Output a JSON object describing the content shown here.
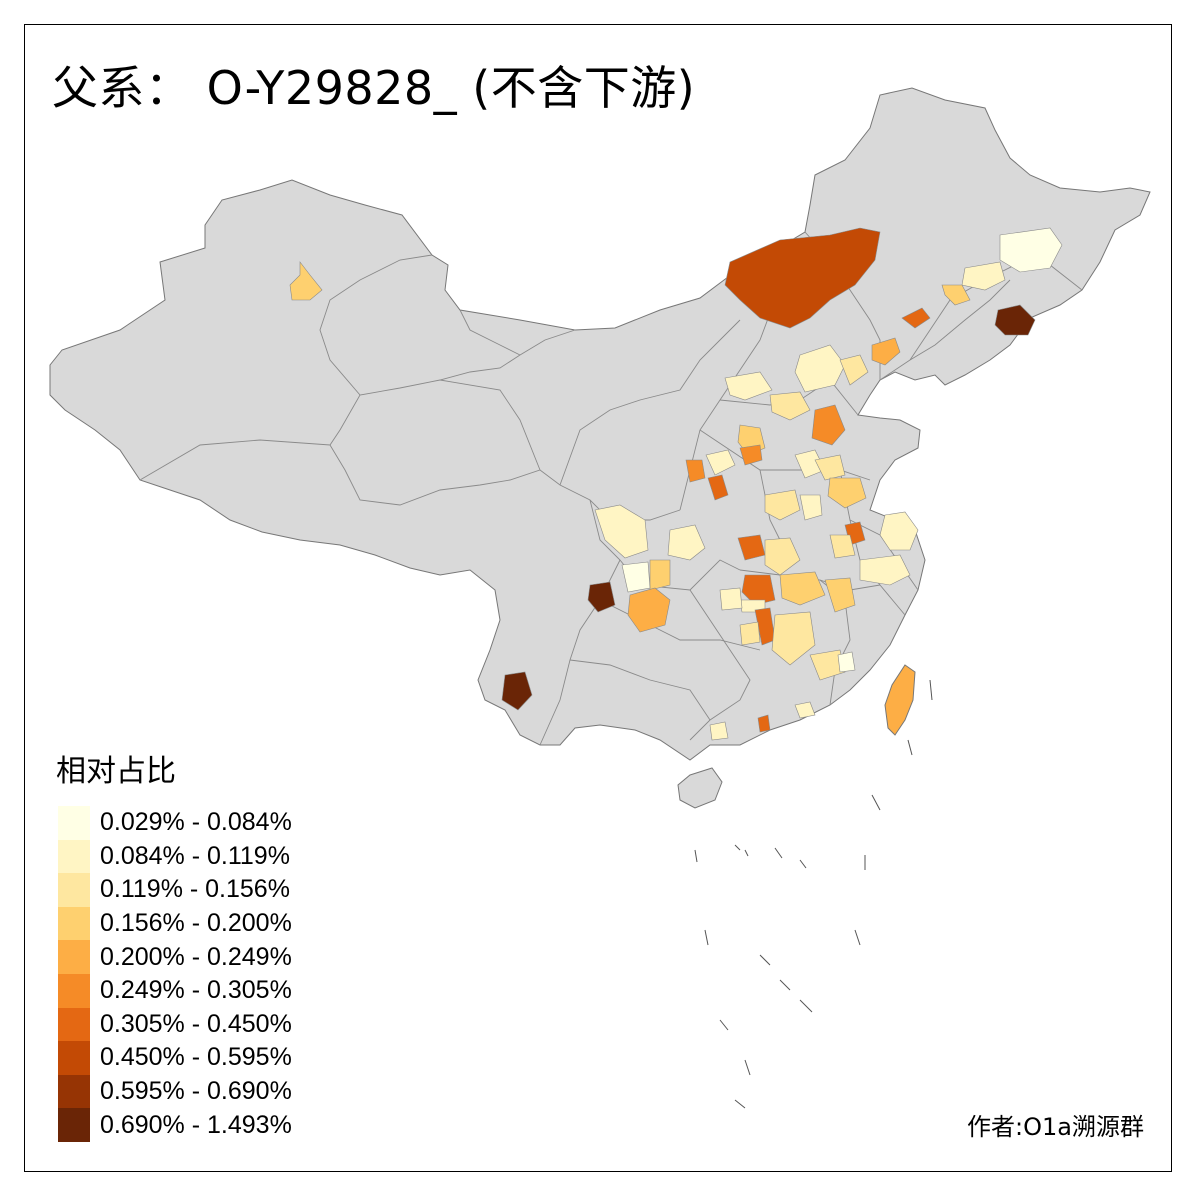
{
  "title": "父系： O-Y29828_ (不含下游)",
  "legend": {
    "title": "相对占比",
    "items": [
      {
        "label": "0.029% - 0.084%",
        "color": "#FFFFE5"
      },
      {
        "label": "0.084% - 0.119%",
        "color": "#FFF5C4"
      },
      {
        "label": "0.119% - 0.156%",
        "color": "#FEE7A0"
      },
      {
        "label": "0.156% - 0.200%",
        "color": "#FED06F"
      },
      {
        "label": "0.200% - 0.249%",
        "color": "#FDAE45"
      },
      {
        "label": "0.249% - 0.305%",
        "color": "#F58B27"
      },
      {
        "label": "0.305% - 0.450%",
        "color": "#E46813"
      },
      {
        "label": "0.450% - 0.595%",
        "color": "#C34A05"
      },
      {
        "label": "0.595% - 0.690%",
        "color": "#963404"
      },
      {
        "label": "0.690% - 1.493%",
        "color": "#6A2506"
      }
    ]
  },
  "credit": "作者:O1a溯源群",
  "colors": {
    "land": "#D9D9D9",
    "border": "#7A7A7A",
    "frame": "#000000"
  }
}
